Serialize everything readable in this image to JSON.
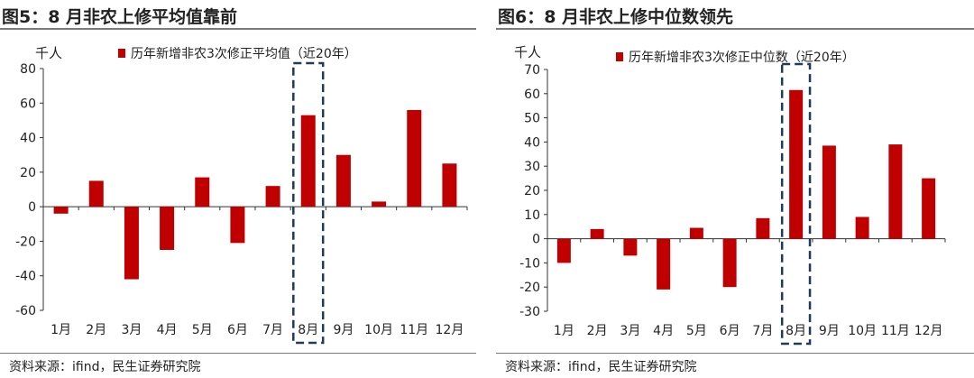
{
  "source_label": "资料来源：ifind，民生证券研究院",
  "colors": {
    "bar": "#c00000",
    "highlight_box": "#1f3a5a",
    "axis": "#333333"
  },
  "chart_data": [
    {
      "type": "bar",
      "title": "图5：8 月非农上修平均值靠前",
      "ylabel": "千人",
      "legend": "历年新增非农3次修正平均值（近20年）",
      "legend_position": "top",
      "categories": [
        "1月",
        "2月",
        "3月",
        "4月",
        "5月",
        "6月",
        "7月",
        "8月",
        "9月",
        "10月",
        "11月",
        "12月"
      ],
      "values": [
        -4,
        15,
        -42,
        -25,
        17,
        -21,
        12,
        53,
        30,
        3,
        56,
        25
      ],
      "ylim": [
        -60,
        80
      ],
      "yticks": [
        -60,
        -40,
        -20,
        0,
        20,
        40,
        60,
        80
      ],
      "highlight_category": "8月",
      "grid": false
    },
    {
      "type": "bar",
      "title": "图6：8 月非农上修中位数领先",
      "ylabel": "千人",
      "legend": "历年新增非农3次修正中位数（近20年）",
      "legend_position": "top",
      "categories": [
        "1月",
        "2月",
        "3月",
        "4月",
        "5月",
        "6月",
        "7月",
        "8月",
        "9月",
        "10月",
        "11月",
        "12月"
      ],
      "values": [
        -10,
        4,
        -7,
        -21,
        4.5,
        -20,
        8.5,
        61.5,
        38.5,
        9,
        39,
        25
      ],
      "ylim": [
        -30,
        70
      ],
      "yticks": [
        -30,
        -20,
        -10,
        0,
        10,
        20,
        30,
        40,
        50,
        60,
        70
      ],
      "highlight_category": "8月",
      "grid": false
    }
  ]
}
